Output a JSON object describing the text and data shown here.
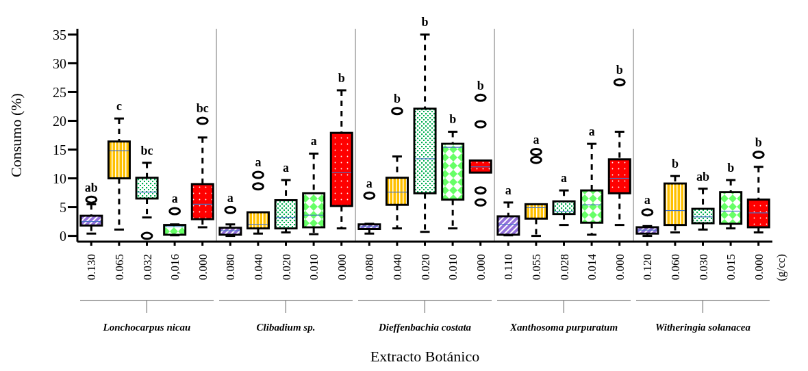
{
  "chart_data": {
    "type": "box",
    "ylabel": "Consumo (%)",
    "xlabel": "Extracto Botánico",
    "categories": [
      "0.130",
      "0.065",
      "0.032",
      "0,016",
      "0.000",
      "0.080",
      "0.040",
      "0.020",
      "0.010",
      "0.000",
      "0.080",
      "0.040",
      "0.020",
      "0.010",
      "0.000",
      "0.110",
      "0.055",
      "0.028",
      "0.014",
      "0.000",
      "0.120",
      "0.060",
      "0.030",
      "0.015",
      "0.000"
    ],
    "ylim": [
      -1,
      36
    ],
    "yticks": [
      0,
      5,
      10,
      15,
      20,
      25,
      30,
      35
    ],
    "grid": false,
    "annotations": [
      "ab",
      "c",
      "bc",
      "a",
      "bc",
      "a",
      "a",
      "a",
      "a",
      "b",
      "a",
      "b",
      "b",
      "b",
      "b",
      "a",
      "a",
      "a",
      "a",
      "b",
      "a",
      "b",
      "ab",
      "b",
      "b",
      "(g/cc)",
      "Lonchocarpus nicau",
      "Clibadium sp.",
      "Dieffenbachia costata",
      "Xanthosoma purpuratum",
      "Witheringia solanacea"
    ],
    "colors": [
      "#9370db",
      "#ffc000",
      "#00b050",
      "#66ff66",
      "#ff0000",
      "#9370db",
      "#ffc000",
      "#00b050",
      "#66ff66",
      "#ff0000",
      "#9370db",
      "#ffc000",
      "#00b050",
      "#66ff66",
      "#ff0000",
      "#9370db",
      "#ffc000",
      "#00b050",
      "#66ff66",
      "#ff0000",
      "#9370db",
      "#ffc000",
      "#00b050",
      "#66ff66",
      "#ff0000"
    ],
    "boxes": [
      {
        "low": 0.4,
        "q1": 1.8,
        "median": 2.5,
        "q3": 3.5,
        "high": 5.5,
        "outliers": [
          6.3
        ]
      },
      {
        "low": 1.1,
        "q1": 10.0,
        "median": 14.8,
        "q3": 16.4,
        "high": 20.4
      },
      {
        "low": 3.2,
        "q1": 6.5,
        "median": 7.6,
        "q3": 10.1,
        "high": 12.7,
        "outliers": [
          0
        ]
      },
      {
        "low": 0.1,
        "q1": 0.2,
        "median": 1.6,
        "q3": 1.9,
        "high": 2.0,
        "outliers": [
          4.3
        ]
      },
      {
        "low": 1.5,
        "q1": 2.9,
        "median": 5.5,
        "q3": 9.0,
        "high": 17.1,
        "outliers": [
          20
        ]
      },
      {
        "low": 0,
        "q1": 0.2,
        "median": 0.9,
        "q3": 1.4,
        "high": 2.0,
        "outliers": [
          4.5
        ]
      },
      {
        "low": 0.4,
        "q1": 1.3,
        "median": 2.0,
        "q3": 4.1,
        "high": 4.1,
        "outliers": [
          8.6,
          10.6
        ]
      },
      {
        "low": 0.6,
        "q1": 1.3,
        "median": 3.2,
        "q3": 6.2,
        "high": 9.7
      },
      {
        "low": 0.3,
        "q1": 1.5,
        "median": 3.6,
        "q3": 7.4,
        "high": 14.3
      },
      {
        "low": 1.3,
        "q1": 5.2,
        "median": 11.0,
        "q3": 17.9,
        "high": 25.3
      },
      {
        "low": 0.4,
        "q1": 1.2,
        "median": 1.6,
        "q3": 2.0,
        "high": 2.1,
        "outliers": [
          7.0
        ]
      },
      {
        "low": 1.3,
        "q1": 5.4,
        "median": 7.6,
        "q3": 10.1,
        "high": 13.8,
        "outliers": [
          21.7
        ]
      },
      {
        "low": 0.7,
        "q1": 7.4,
        "median": 13.4,
        "q3": 22.1,
        "high": 35
      },
      {
        "low": 1.3,
        "q1": 6.3,
        "median": 15.4,
        "q3": 16.0,
        "high": 18.1
      },
      {
        "low": 11.0,
        "q1": 11.0,
        "median": 12.0,
        "q3": 13.1,
        "high": 13.1,
        "outliers": [
          5.8,
          7.9,
          19.4,
          24.0
        ]
      },
      {
        "low": 0.1,
        "q1": 0.2,
        "median": 2.0,
        "q3": 3.4,
        "high": 5.8
      },
      {
        "low": 0,
        "q1": 3.0,
        "median": 4.9,
        "q3": 5.5,
        "high": 5.5,
        "outliers": [
          13.2,
          14.6
        ]
      },
      {
        "low": 1.9,
        "q1": 3.8,
        "median": 4.2,
        "q3": 6.0,
        "high": 7.9
      },
      {
        "low": 0.2,
        "q1": 2.3,
        "median": 5.4,
        "q3": 7.9,
        "high": 16.0
      },
      {
        "low": 1.9,
        "q1": 7.4,
        "median": 10.0,
        "q3": 13.3,
        "high": 18.1,
        "outliers": [
          26.7
        ]
      },
      {
        "low": 0,
        "q1": 0.4,
        "median": 1.0,
        "q3": 1.5,
        "high": 1.7,
        "outliers": [
          4.1
        ]
      },
      {
        "low": 0.6,
        "q1": 1.9,
        "median": 4.4,
        "q3": 9.1,
        "high": 10.4
      },
      {
        "low": 1.1,
        "q1": 2.2,
        "median": 3.3,
        "q3": 4.7,
        "high": 8.2
      },
      {
        "low": 1.3,
        "q1": 2.1,
        "median": 4.3,
        "q3": 7.6,
        "high": 9.7
      },
      {
        "low": 0.6,
        "q1": 1.5,
        "median": 4.0,
        "q3": 6.3,
        "high": 12.0,
        "outliers": [
          14.1
        ]
      }
    ]
  }
}
